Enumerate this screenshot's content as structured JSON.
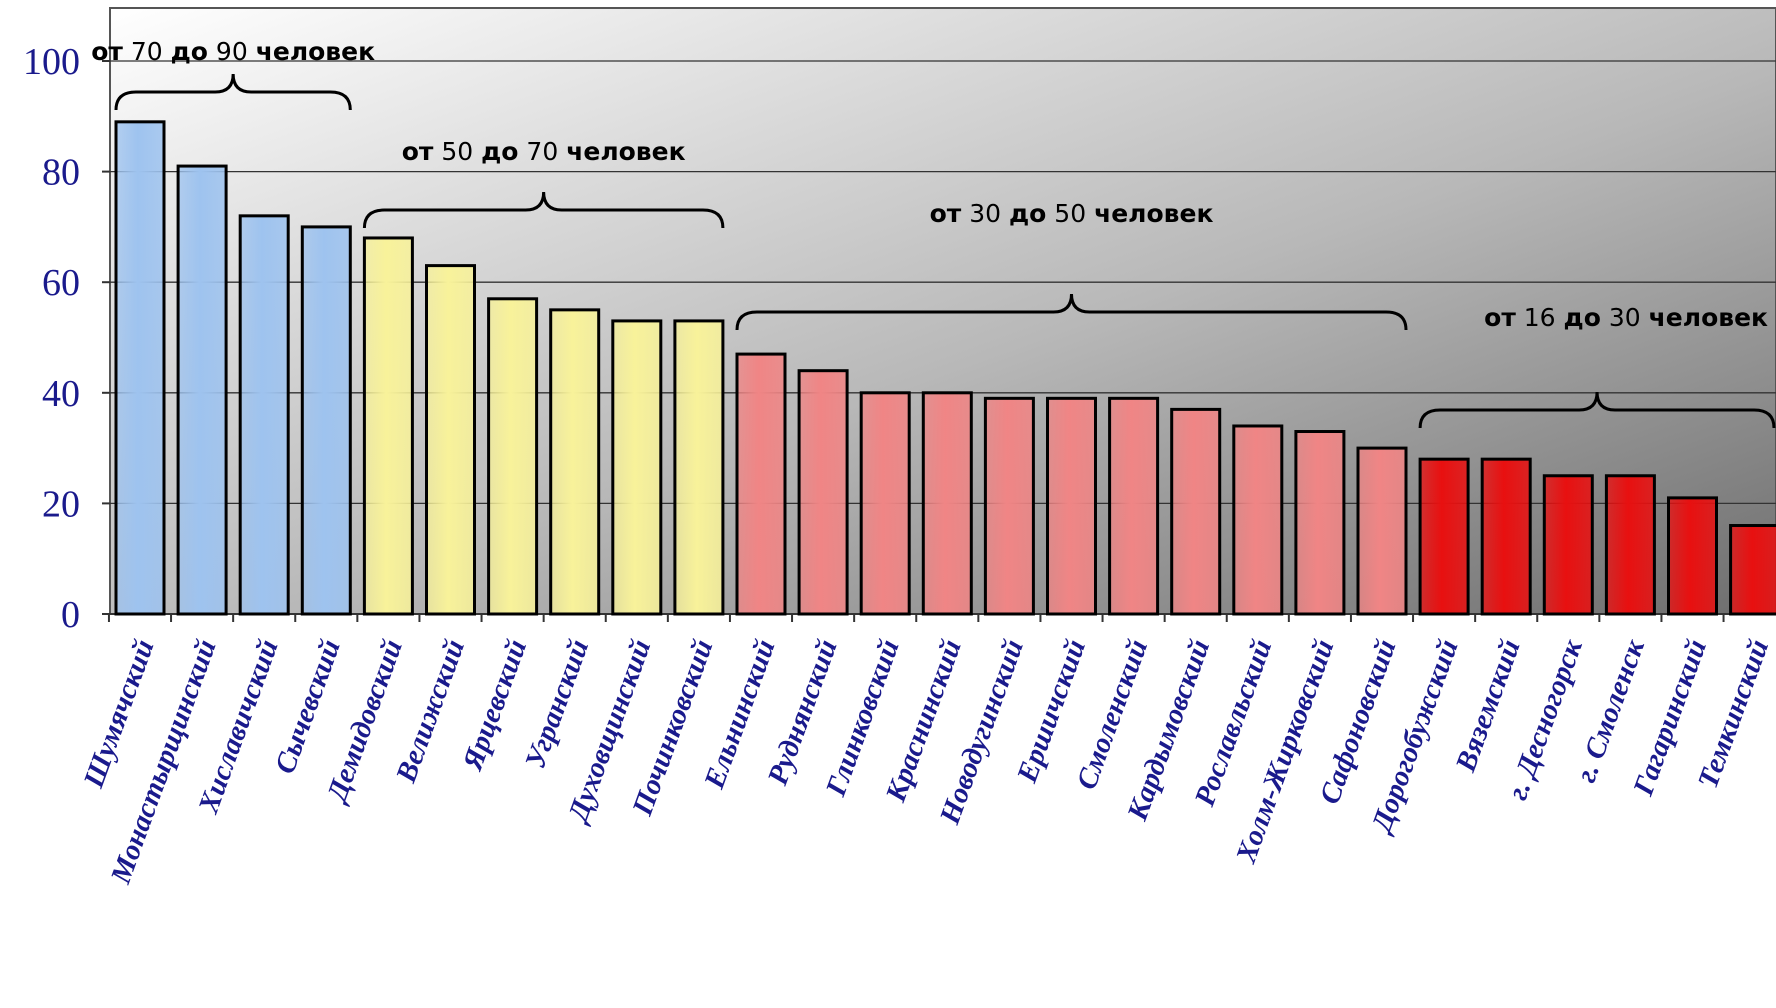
{
  "chart_data": {
    "type": "bar",
    "title": "",
    "xlabel": "",
    "ylabel": "",
    "ylim": [
      0,
      100
    ],
    "yticks": [
      0,
      20,
      40,
      60,
      80,
      100
    ],
    "grid": true,
    "categories": [
      "Шумячский",
      "Монастырщинский",
      "Хиславичский",
      "Сычевский",
      "Демидовский",
      "Велижский",
      "Ярцевский",
      "Угранский",
      "Духовщинский",
      "Починковский",
      "Ельнинский",
      "Руднянский",
      "Глинковский",
      "Краснинский",
      "Новодугинский",
      "Ершичский",
      "Смоленский",
      "Кардымовский",
      "Рославльский",
      "Холм-Жирковский",
      "Сафоновский",
      "Дорогобужский",
      "Вяземский",
      "г. Десногорск",
      "г. Смоленск",
      "Гагаринский",
      "Темкинский"
    ],
    "values": [
      89,
      81,
      72,
      70,
      68,
      63,
      57,
      55,
      53,
      53,
      47,
      44,
      40,
      40,
      39,
      39,
      39,
      37,
      34,
      33,
      30,
      28,
      28,
      25,
      25,
      21,
      16
    ],
    "bar_groups": [
      {
        "start": 0,
        "end": 3,
        "color": "#9ec3ef",
        "from": "70",
        "to": "90"
      },
      {
        "start": 4,
        "end": 9,
        "color": "#f8f29a",
        "from": "50",
        "to": "70"
      },
      {
        "start": 10,
        "end": 20,
        "color": "#f08585",
        "from": "30",
        "to": "50"
      },
      {
        "start": 21,
        "end": 26,
        "color": "#e81010",
        "from": "16",
        "to": "30"
      }
    ],
    "group_words": {
      "from": "от",
      "to": "до",
      "unit": "человек"
    },
    "colors": {
      "axis_text": "#1a1a8c",
      "grid": "#333333"
    }
  }
}
